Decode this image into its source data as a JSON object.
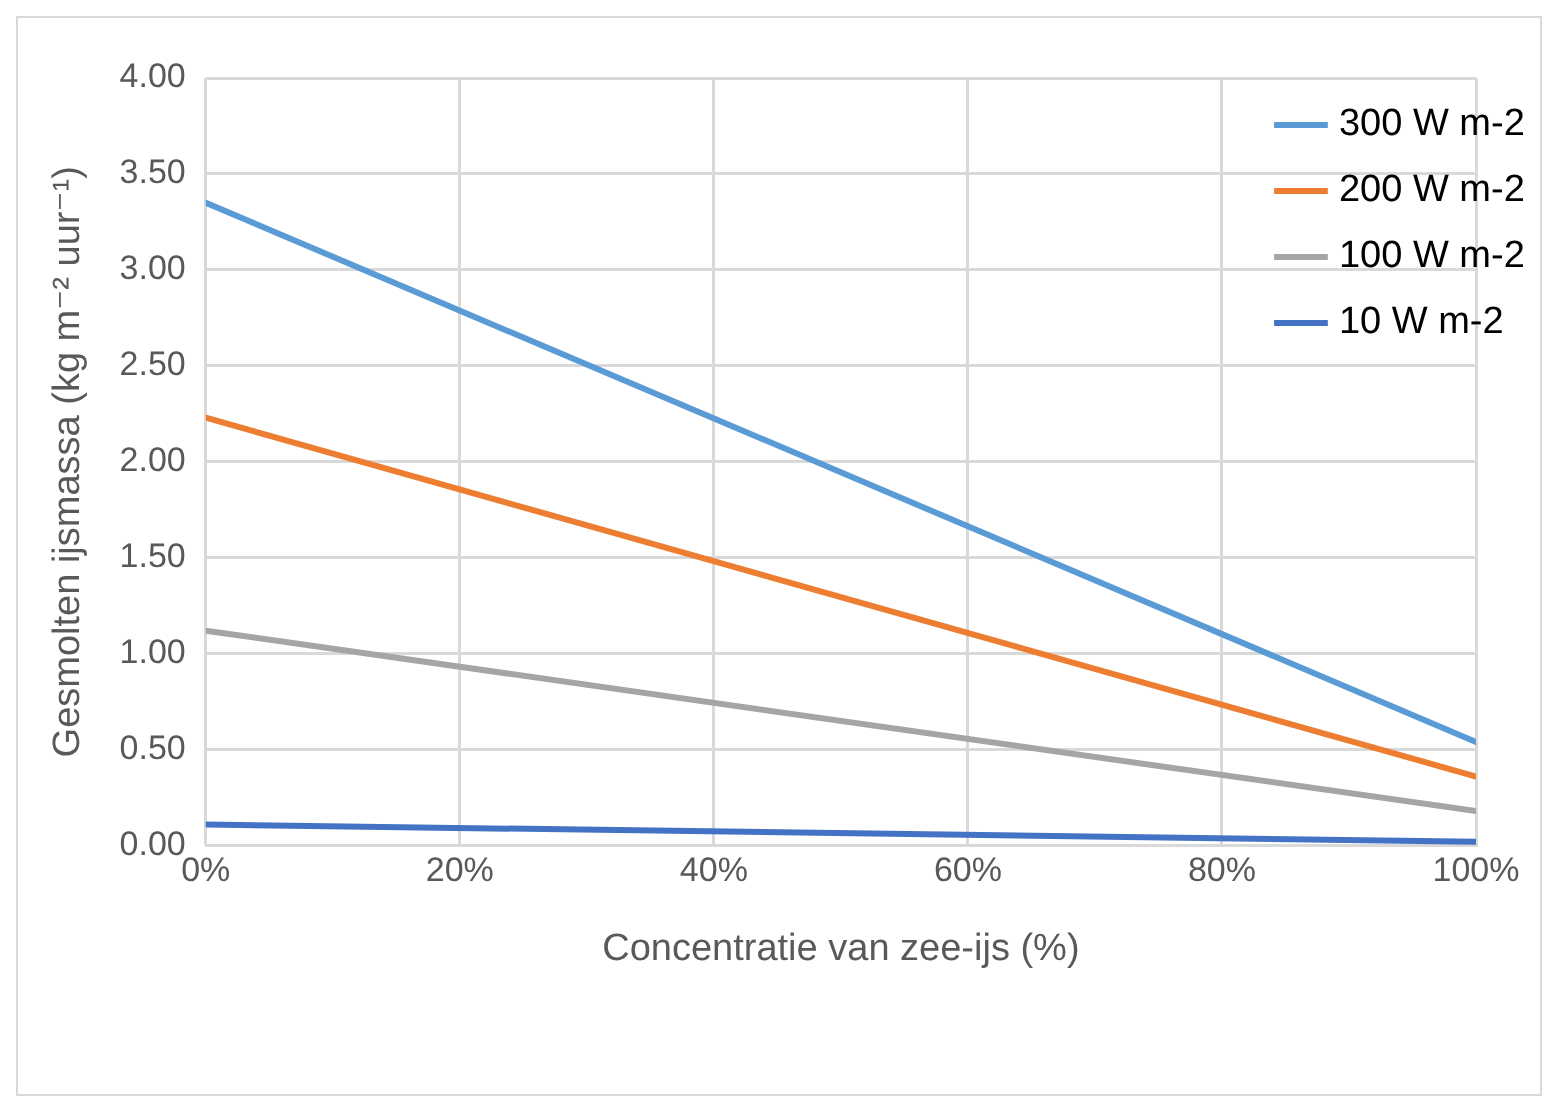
{
  "chart_data": {
    "type": "line",
    "xlabel": "Concentratie van zee-ijs (%)",
    "ylabel": "Gesmolten ijsmassa (kg m⁻² uur⁻¹)",
    "x": [
      0,
      100
    ],
    "series": [
      {
        "name": "300 W m-2",
        "color": "#5b9bd5",
        "values": [
          3.35,
          0.54
        ]
      },
      {
        "name": "200 W m-2",
        "color": "#ed7d31",
        "values": [
          2.23,
          0.36
        ]
      },
      {
        "name": "100 W m-2",
        "color": "#a5a5a5",
        "values": [
          1.12,
          0.18
        ]
      },
      {
        "name": "10 W m-2",
        "color": "#4472c4",
        "values": [
          0.11,
          0.02
        ]
      }
    ],
    "xlim": [
      0,
      100
    ],
    "xticks": [
      {
        "value": 0,
        "label": "0%"
      },
      {
        "value": 20,
        "label": "20%"
      },
      {
        "value": 40,
        "label": "40%"
      },
      {
        "value": 60,
        "label": "60%"
      },
      {
        "value": 80,
        "label": "80%"
      },
      {
        "value": 100,
        "label": "100%"
      }
    ],
    "ylim": [
      0,
      4
    ],
    "yticks": [
      {
        "value": 0,
        "label": "0.00"
      },
      {
        "value": 0.5,
        "label": "0.50"
      },
      {
        "value": 1,
        "label": "1.00"
      },
      {
        "value": 1.5,
        "label": "1.50"
      },
      {
        "value": 2,
        "label": "2.00"
      },
      {
        "value": 2.5,
        "label": "2.50"
      },
      {
        "value": 3,
        "label": "3.00"
      },
      {
        "value": 3.5,
        "label": "3.50"
      },
      {
        "value": 4,
        "label": "4.00"
      }
    ],
    "grid": true,
    "legend": "top right",
    "marker": "none",
    "line_style": "solid"
  }
}
